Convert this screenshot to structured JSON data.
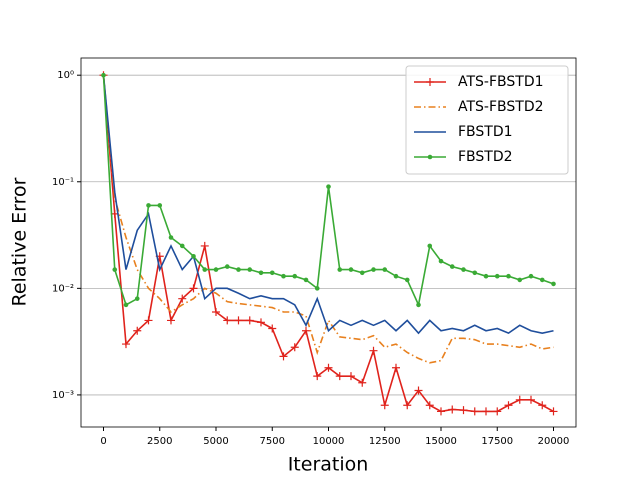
{
  "chart_data": {
    "type": "line",
    "xlabel": "Iteration",
    "ylabel": "Relative Error",
    "x": [
      0,
      500,
      1000,
      1500,
      2000,
      2500,
      3000,
      3500,
      4000,
      4500,
      5000,
      5500,
      6000,
      6500,
      7000,
      7500,
      8000,
      8500,
      9000,
      9500,
      10000,
      10500,
      11000,
      11500,
      12000,
      12500,
      13000,
      13500,
      14000,
      14500,
      15000,
      15500,
      16000,
      16500,
      17000,
      17500,
      18000,
      18500,
      19000,
      19500,
      20000
    ],
    "series": [
      {
        "name": "ATS-FBSTD1",
        "color": "#e0231c",
        "dash": "solid",
        "marker": "plus",
        "values": [
          1.0,
          0.05,
          0.003,
          0.004,
          0.005,
          0.02,
          0.005,
          0.008,
          0.01,
          0.025,
          0.006,
          0.005,
          0.005,
          0.005,
          0.0048,
          0.0042,
          0.0023,
          0.0028,
          0.004,
          0.0015,
          0.0018,
          0.0015,
          0.0015,
          0.0013,
          0.0026,
          0.0008,
          0.0018,
          0.0008,
          0.0011,
          0.0008,
          0.0007,
          0.00073,
          0.00072,
          0.0007,
          0.0007,
          0.0007,
          0.0008,
          0.0009,
          0.0009,
          0.0008,
          0.0007
        ]
      },
      {
        "name": "ATS-FBSTD2",
        "color": "#e8801e",
        "dash": "dashdot",
        "marker": "none",
        "values": [
          1.0,
          0.07,
          0.03,
          0.015,
          0.01,
          0.008,
          0.006,
          0.007,
          0.008,
          0.01,
          0.009,
          0.0075,
          0.0072,
          0.007,
          0.0068,
          0.0066,
          0.006,
          0.006,
          0.0055,
          0.0025,
          0.005,
          0.0035,
          0.0034,
          0.0033,
          0.0036,
          0.0028,
          0.003,
          0.0025,
          0.0022,
          0.002,
          0.0021,
          0.0034,
          0.0034,
          0.0033,
          0.003,
          0.003,
          0.0029,
          0.0028,
          0.003,
          0.0027,
          0.0028
        ]
      },
      {
        "name": "FBSTD1",
        "color": "#1f4e9c",
        "dash": "solid",
        "marker": "none",
        "values": [
          1.0,
          0.08,
          0.015,
          0.035,
          0.05,
          0.015,
          0.025,
          0.015,
          0.02,
          0.008,
          0.01,
          0.01,
          0.009,
          0.008,
          0.0085,
          0.008,
          0.008,
          0.007,
          0.0045,
          0.008,
          0.004,
          0.005,
          0.0045,
          0.005,
          0.0045,
          0.005,
          0.004,
          0.005,
          0.0038,
          0.005,
          0.004,
          0.0042,
          0.004,
          0.0045,
          0.004,
          0.0042,
          0.0038,
          0.0045,
          0.004,
          0.0038,
          0.004
        ]
      },
      {
        "name": "FBSTD2",
        "color": "#3aaa35",
        "dash": "solid",
        "marker": "dot",
        "values": [
          1.0,
          0.015,
          0.007,
          0.008,
          0.06,
          0.06,
          0.03,
          0.025,
          0.02,
          0.015,
          0.015,
          0.016,
          0.015,
          0.015,
          0.014,
          0.014,
          0.013,
          0.013,
          0.012,
          0.01,
          0.09,
          0.015,
          0.015,
          0.014,
          0.015,
          0.015,
          0.013,
          0.012,
          0.007,
          0.025,
          0.018,
          0.016,
          0.015,
          0.014,
          0.013,
          0.013,
          0.013,
          0.012,
          0.013,
          0.012,
          0.011
        ]
      }
    ],
    "xlim": [
      -1000,
      21000
    ],
    "ylim": [
      0.0005,
      1.45
    ],
    "ylog": true,
    "xticks": [
      0,
      2500,
      5000,
      7500,
      10000,
      12500,
      15000,
      17500,
      20000
    ],
    "yticks": [
      {
        "value": 1,
        "label": "10⁰"
      },
      {
        "value": 0.1,
        "label": "10⁻¹"
      },
      {
        "value": 0.01,
        "label": "10⁻²"
      },
      {
        "value": 0.001,
        "label": "10⁻³"
      }
    ],
    "ygrid": true,
    "legend": "upper-right"
  }
}
